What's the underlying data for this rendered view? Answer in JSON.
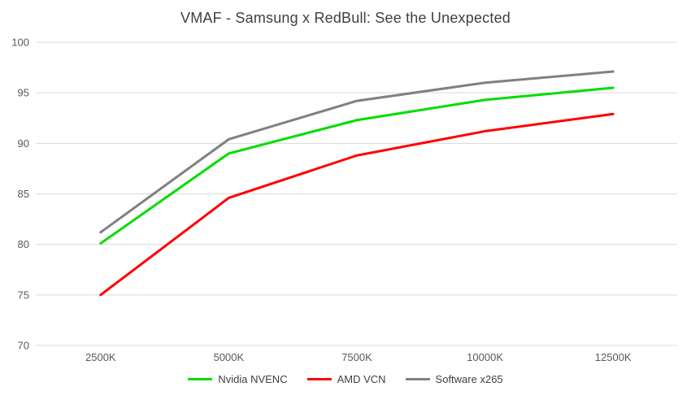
{
  "colors": {
    "background": "#ffffff",
    "title_text": "#404040",
    "axis_text": "#595959",
    "gridline": "#d9d9d9"
  },
  "chart_data": {
    "type": "line",
    "title": "VMAF - Samsung x RedBull: See the Unexpected",
    "categories": [
      "2500K",
      "5000K",
      "7500K",
      "10000K",
      "12500K"
    ],
    "series": [
      {
        "name": "Nvidia NVENC",
        "color": "#00dd00",
        "values": [
          80.1,
          89.0,
          92.3,
          94.3,
          95.5
        ]
      },
      {
        "name": "AMD VCN",
        "color": "#ff0000",
        "values": [
          75.0,
          84.6,
          88.8,
          91.2,
          92.9
        ]
      },
      {
        "name": "Software x265",
        "color": "#808080",
        "values": [
          81.2,
          90.4,
          94.2,
          96.0,
          97.1
        ]
      }
    ],
    "xlabel": "",
    "ylabel": "",
    "ylim": [
      70,
      100
    ],
    "ytick_step": 5,
    "yticks": [
      70,
      75,
      80,
      85,
      90,
      95,
      100
    ],
    "grid": true,
    "legend_position": "bottom"
  }
}
